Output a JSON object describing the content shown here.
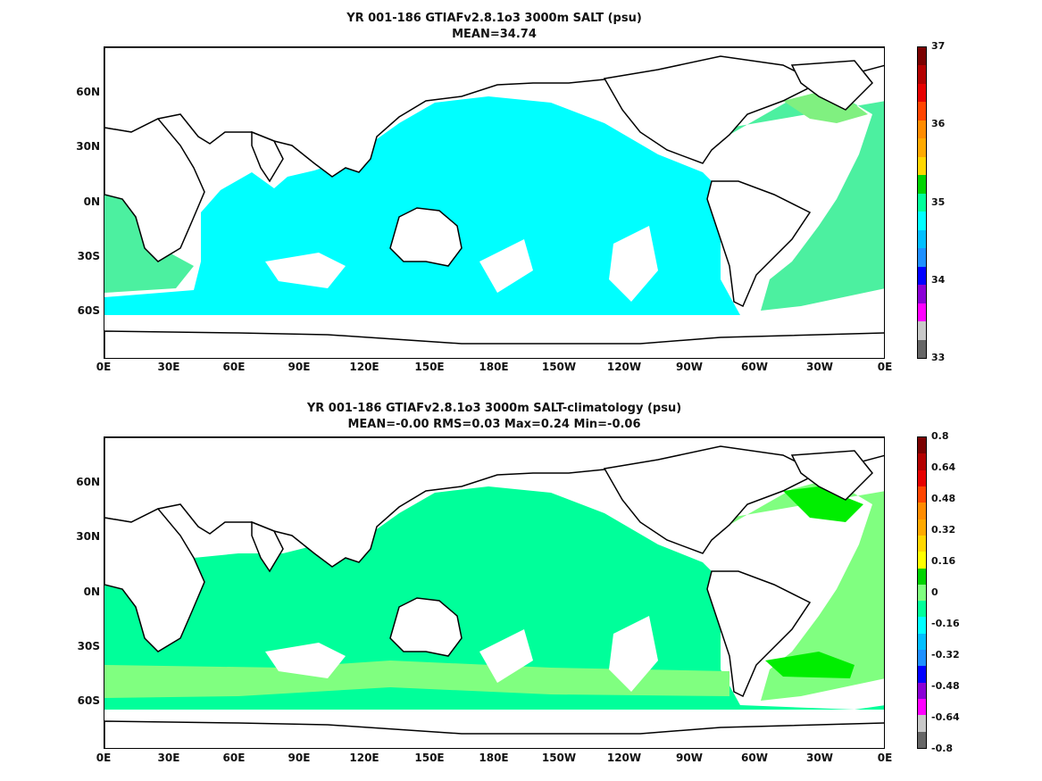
{
  "panels": [
    {
      "title_line1": "YR 001-186 GTIAFv2.8.1o3 3000m SALT (psu)",
      "title_line2": "MEAN=34.74",
      "colorbar": {
        "tick_labels": [
          "37",
          "36",
          "35",
          "34",
          "33"
        ],
        "colors": [
          "#7a0000",
          "#b30000",
          "#e60000",
          "#ff4500",
          "#ff8c00",
          "#ffaa00",
          "#ffd700",
          "#00d400",
          "#00ff9a",
          "#00ffff",
          "#00bfff",
          "#1e90ff",
          "#0000ff",
          "#8a00d6",
          "#ff00ff",
          "#c8c8c8",
          "#666666"
        ]
      }
    },
    {
      "title_line1": "YR 001-186 GTIAFv2.8.1o3 3000m SALT-climatology (psu)",
      "title_line2": "MEAN=-0.00   RMS=0.03   Max=0.24   Min=-0.06",
      "colorbar": {
        "tick_labels": [
          "0.8",
          "0.64",
          "0.48",
          "0.32",
          "0.16",
          "0",
          "-0.16",
          "-0.32",
          "-0.48",
          "-0.64",
          "-0.8"
        ],
        "colors": [
          "#7a0000",
          "#b30000",
          "#e60000",
          "#ff4500",
          "#ff8c00",
          "#ffaa00",
          "#ffd700",
          "#ffff00",
          "#00d400",
          "#80ff80",
          "#00ff9a",
          "#00ffff",
          "#00bfff",
          "#1e90ff",
          "#0000ff",
          "#8a00d6",
          "#ff00ff",
          "#c8c8c8",
          "#666666"
        ]
      }
    }
  ],
  "axes": {
    "x_tick_labels": [
      "0E",
      "30E",
      "60E",
      "90E",
      "120E",
      "150E",
      "180E",
      "150W",
      "120W",
      "90W",
      "60W",
      "30W",
      "0E"
    ],
    "y_tick_labels": [
      "60N",
      "30N",
      "0N",
      "30S",
      "60S"
    ]
  },
  "map_colors": {
    "land": "#ffffff",
    "coast": "#000000",
    "top_ocean_main": "#00ffff",
    "top_ocean_atlantic": "#4cf0a0",
    "top_ocean_greenland": "#80f080",
    "bottom_ocean_main": "#00ff9a",
    "bottom_ocean_light": "#80ff80",
    "bottom_ocean_bright": "#00ee00",
    "bottom_ocean_yellow": "#ffff00"
  }
}
